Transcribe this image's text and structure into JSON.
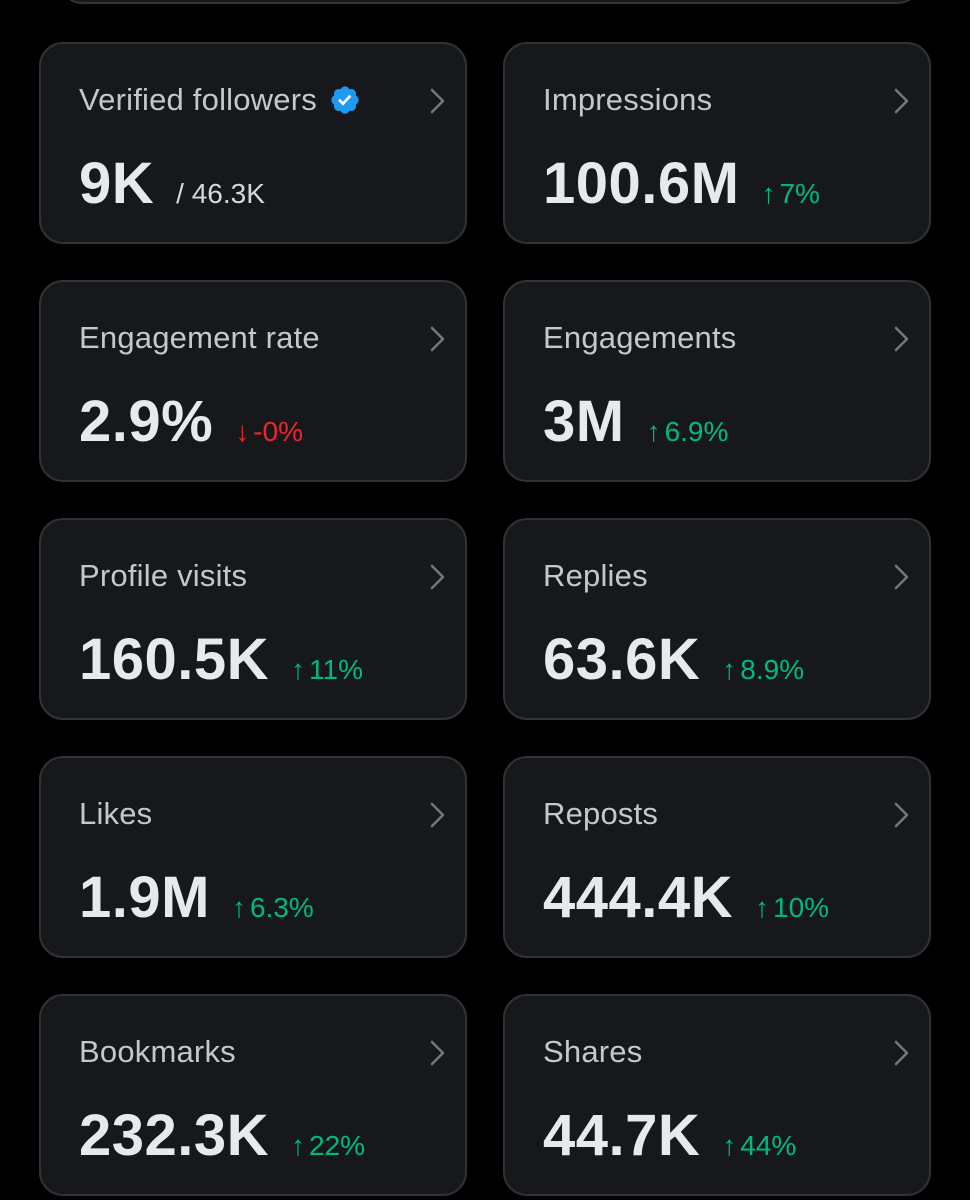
{
  "colors": {
    "background": "#000000",
    "card_background": "#16181c",
    "card_border": "#2f3336",
    "up": "#00ba7c",
    "down": "#f4212e",
    "verified": "#1d9bf0"
  },
  "metrics": [
    {
      "label": "Verified followers",
      "value": "9K",
      "sub": "/ 46.3K",
      "verified_icon": "verified-badge-icon"
    },
    {
      "label": "Impressions",
      "value": "100.6M",
      "change": "7%",
      "direction": "up"
    },
    {
      "label": "Engagement rate",
      "value": "2.9%",
      "change": "-0%",
      "direction": "down"
    },
    {
      "label": "Engagements",
      "value": "3M",
      "change": "6.9%",
      "direction": "up"
    },
    {
      "label": "Profile visits",
      "value": "160.5K",
      "change": "11%",
      "direction": "up"
    },
    {
      "label": "Replies",
      "value": "63.6K",
      "change": "8.9%",
      "direction": "up"
    },
    {
      "label": "Likes",
      "value": "1.9M",
      "change": "6.3%",
      "direction": "up"
    },
    {
      "label": "Reposts",
      "value": "444.4K",
      "change": "10%",
      "direction": "up"
    },
    {
      "label": "Bookmarks",
      "value": "232.3K",
      "change": "22%",
      "direction": "up"
    },
    {
      "label": "Shares",
      "value": "44.7K",
      "change": "44%",
      "direction": "up"
    }
  ]
}
